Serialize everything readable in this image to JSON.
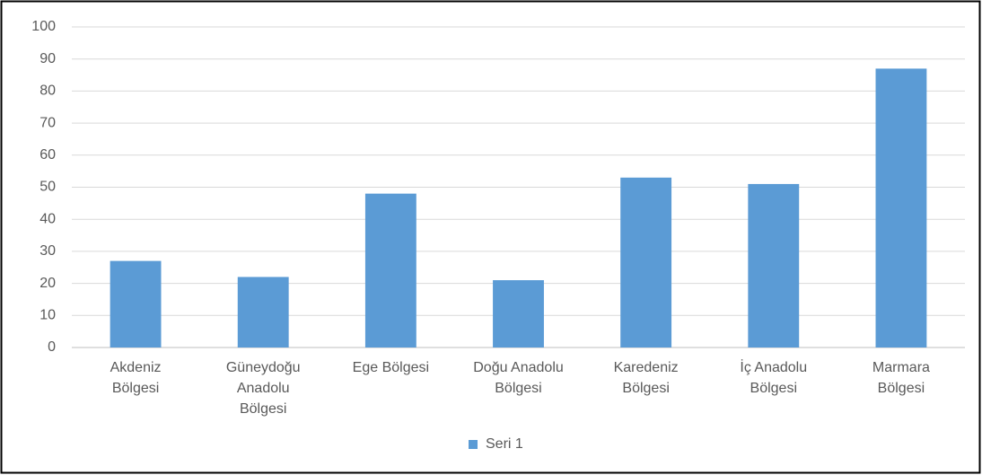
{
  "chart_data": {
    "type": "bar",
    "categories": [
      "Akdeniz Bölgesi",
      "Güneydoğu Anadolu Bölgesi",
      "Ege Bölgesi",
      "Doğu Anadolu Bölgesi",
      "Karedeniz Bölgesi",
      "İç Anadolu Bölgesi",
      "Marmara Bölgesi"
    ],
    "series": [
      {
        "name": "Seri 1",
        "color": "#5b9bd5",
        "values": [
          27,
          22,
          48,
          21,
          53,
          51,
          87
        ]
      }
    ],
    "ylim": [
      0,
      100
    ],
    "yticks": [
      0,
      10,
      20,
      30,
      40,
      50,
      60,
      70,
      80,
      90,
      100
    ],
    "grid": true,
    "legend": "bottom"
  }
}
